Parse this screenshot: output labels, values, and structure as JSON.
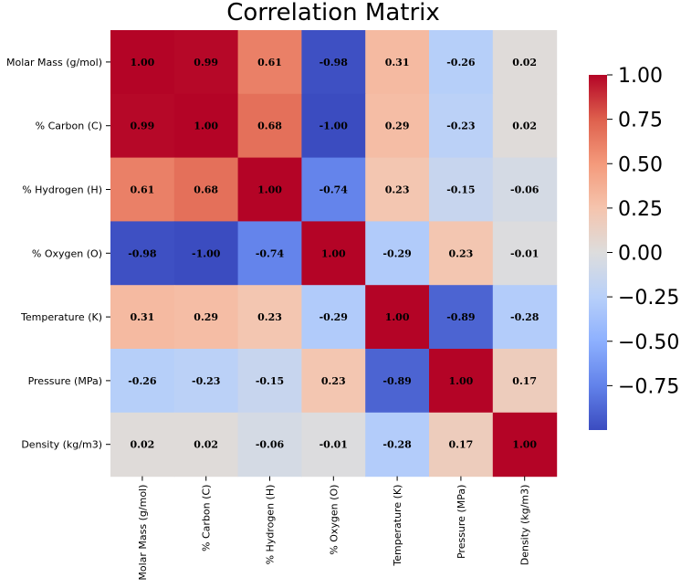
{
  "chart_data": {
    "type": "heatmap",
    "title": "Correlation Matrix",
    "xlabel": "",
    "ylabel": "",
    "labels": [
      "Molar Mass (g/mol)",
      "% Carbon (C)",
      "% Hydrogen (H)",
      "% Oxygen (O)",
      "Temperature (K)",
      "Pressure (MPa)",
      "Density (kg/m3)"
    ],
    "values": [
      [
        1.0,
        0.99,
        0.61,
        -0.98,
        0.31,
        -0.26,
        0.02
      ],
      [
        0.99,
        1.0,
        0.68,
        -1.0,
        0.29,
        -0.23,
        0.02
      ],
      [
        0.61,
        0.68,
        1.0,
        -0.74,
        0.23,
        -0.15,
        -0.06
      ],
      [
        -0.98,
        -1.0,
        -0.74,
        1.0,
        -0.29,
        0.23,
        -0.01
      ],
      [
        0.31,
        0.29,
        0.23,
        -0.29,
        1.0,
        -0.89,
        -0.28
      ],
      [
        -0.26,
        -0.23,
        -0.15,
        0.23,
        -0.89,
        1.0,
        0.17
      ],
      [
        0.02,
        0.02,
        -0.06,
        -0.01,
        -0.28,
        0.17,
        1.0
      ]
    ],
    "value_format": "0.00",
    "colormap": "coolwarm",
    "colorbar": {
      "range": [
        -1.0,
        1.0
      ],
      "ticks": [
        1.0,
        0.75,
        0.5,
        0.25,
        0.0,
        -0.25,
        -0.5,
        -0.75
      ],
      "tick_labels": [
        "1.00",
        "0.75",
        "0.50",
        "0.25",
        "0.00",
        "−0.25",
        "−0.50",
        "−0.75"
      ]
    }
  },
  "colors": {
    "cold": "#3b4cc0",
    "neutral": "#dddddd",
    "hot": "#b40426",
    "text": "#000000"
  }
}
